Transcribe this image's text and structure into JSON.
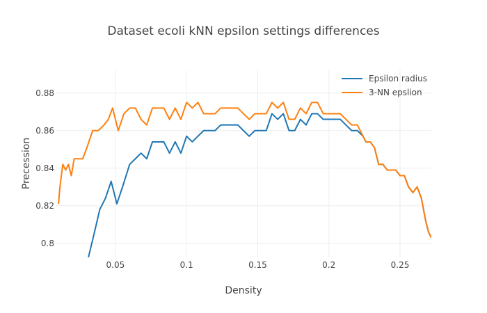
{
  "chart_data": {
    "type": "line",
    "title": "Dataset ecoli kNN epsilon settings differences",
    "xlabel": "Density",
    "ylabel": "Precession",
    "xlim": [
      0.008,
      0.272
    ],
    "ylim": [
      0.7925,
      0.8925
    ],
    "xticks": [
      0.05,
      0.1,
      0.15,
      0.2,
      0.25
    ],
    "xtick_labels": [
      "0.05",
      "0.1",
      "0.15",
      "0.2",
      "0.25"
    ],
    "yticks": [
      0.8,
      0.82,
      0.84,
      0.86,
      0.88
    ],
    "ytick_labels": [
      "0.8",
      "0.82",
      "0.84",
      "0.86",
      "0.88"
    ],
    "grid": true,
    "legend_position": "top-right",
    "series": [
      {
        "name": "Epsilon radius",
        "color": "#1f77b4",
        "points": [
          [
            0.031,
            0.7925
          ],
          [
            0.035,
            0.805
          ],
          [
            0.039,
            0.818
          ],
          [
            0.043,
            0.824
          ],
          [
            0.047,
            0.833
          ],
          [
            0.051,
            0.821
          ],
          [
            0.055,
            0.83
          ],
          [
            0.06,
            0.842
          ],
          [
            0.064,
            0.845
          ],
          [
            0.068,
            0.848
          ],
          [
            0.072,
            0.845
          ],
          [
            0.076,
            0.854
          ],
          [
            0.08,
            0.854
          ],
          [
            0.084,
            0.854
          ],
          [
            0.088,
            0.848
          ],
          [
            0.092,
            0.854
          ],
          [
            0.096,
            0.848
          ],
          [
            0.1,
            0.857
          ],
          [
            0.104,
            0.854
          ],
          [
            0.108,
            0.857
          ],
          [
            0.112,
            0.86
          ],
          [
            0.116,
            0.86
          ],
          [
            0.12,
            0.86
          ],
          [
            0.124,
            0.863
          ],
          [
            0.128,
            0.863
          ],
          [
            0.132,
            0.863
          ],
          [
            0.136,
            0.863
          ],
          [
            0.14,
            0.86
          ],
          [
            0.144,
            0.857
          ],
          [
            0.148,
            0.86
          ],
          [
            0.152,
            0.86
          ],
          [
            0.156,
            0.86
          ],
          [
            0.16,
            0.869
          ],
          [
            0.164,
            0.866
          ],
          [
            0.168,
            0.869
          ],
          [
            0.172,
            0.86
          ],
          [
            0.176,
            0.86
          ],
          [
            0.18,
            0.866
          ],
          [
            0.184,
            0.863
          ],
          [
            0.188,
            0.869
          ],
          [
            0.192,
            0.869
          ],
          [
            0.196,
            0.866
          ],
          [
            0.2,
            0.866
          ],
          [
            0.204,
            0.866
          ],
          [
            0.208,
            0.866
          ],
          [
            0.212,
            0.863
          ],
          [
            0.216,
            0.86
          ],
          [
            0.22,
            0.86
          ],
          [
            0.224,
            0.857
          ],
          [
            0.226,
            0.854
          ],
          [
            0.229,
            0.854
          ],
          [
            0.232,
            0.851
          ],
          [
            0.235,
            0.842
          ],
          [
            0.238,
            0.842
          ],
          [
            0.241,
            0.839
          ],
          [
            0.244,
            0.839
          ],
          [
            0.247,
            0.839
          ],
          [
            0.25,
            0.836
          ],
          [
            0.253,
            0.836
          ],
          [
            0.256,
            0.83
          ],
          [
            0.259,
            0.827
          ],
          [
            0.262,
            0.83
          ],
          [
            0.265,
            0.824
          ],
          [
            0.268,
            0.812
          ],
          [
            0.27,
            0.806
          ],
          [
            0.272,
            0.803
          ]
        ]
      },
      {
        "name": "3-NN epslion",
        "color": "#ff7f0e",
        "points": [
          [
            0.01,
            0.821
          ],
          [
            0.011,
            0.83
          ],
          [
            0.013,
            0.842
          ],
          [
            0.015,
            0.839
          ],
          [
            0.017,
            0.842
          ],
          [
            0.019,
            0.836
          ],
          [
            0.021,
            0.845
          ],
          [
            0.023,
            0.845
          ],
          [
            0.025,
            0.845
          ],
          [
            0.027,
            0.845
          ],
          [
            0.03,
            0.851
          ],
          [
            0.034,
            0.86
          ],
          [
            0.038,
            0.86
          ],
          [
            0.042,
            0.863
          ],
          [
            0.045,
            0.866
          ],
          [
            0.048,
            0.872
          ],
          [
            0.052,
            0.86
          ],
          [
            0.056,
            0.869
          ],
          [
            0.06,
            0.872
          ],
          [
            0.064,
            0.872
          ],
          [
            0.068,
            0.866
          ],
          [
            0.072,
            0.863
          ],
          [
            0.076,
            0.872
          ],
          [
            0.08,
            0.872
          ],
          [
            0.084,
            0.872
          ],
          [
            0.088,
            0.866
          ],
          [
            0.092,
            0.872
          ],
          [
            0.096,
            0.866
          ],
          [
            0.1,
            0.875
          ],
          [
            0.104,
            0.872
          ],
          [
            0.108,
            0.875
          ],
          [
            0.112,
            0.869
          ],
          [
            0.116,
            0.869
          ],
          [
            0.12,
            0.869
          ],
          [
            0.124,
            0.872
          ],
          [
            0.128,
            0.872
          ],
          [
            0.132,
            0.872
          ],
          [
            0.136,
            0.872
          ],
          [
            0.14,
            0.869
          ],
          [
            0.144,
            0.866
          ],
          [
            0.148,
            0.869
          ],
          [
            0.152,
            0.869
          ],
          [
            0.156,
            0.869
          ],
          [
            0.16,
            0.875
          ],
          [
            0.164,
            0.872
          ],
          [
            0.168,
            0.875
          ],
          [
            0.172,
            0.866
          ],
          [
            0.176,
            0.866
          ],
          [
            0.18,
            0.872
          ],
          [
            0.184,
            0.869
          ],
          [
            0.188,
            0.875
          ],
          [
            0.192,
            0.875
          ],
          [
            0.196,
            0.869
          ],
          [
            0.2,
            0.869
          ],
          [
            0.204,
            0.869
          ],
          [
            0.208,
            0.869
          ],
          [
            0.212,
            0.866
          ],
          [
            0.216,
            0.863
          ],
          [
            0.22,
            0.863
          ],
          [
            0.224,
            0.857
          ],
          [
            0.226,
            0.854
          ],
          [
            0.229,
            0.854
          ],
          [
            0.232,
            0.851
          ],
          [
            0.235,
            0.842
          ],
          [
            0.238,
            0.842
          ],
          [
            0.241,
            0.839
          ],
          [
            0.244,
            0.839
          ],
          [
            0.247,
            0.839
          ],
          [
            0.25,
            0.836
          ],
          [
            0.253,
            0.836
          ],
          [
            0.256,
            0.83
          ],
          [
            0.259,
            0.827
          ],
          [
            0.262,
            0.83
          ],
          [
            0.265,
            0.824
          ],
          [
            0.268,
            0.812
          ],
          [
            0.27,
            0.806
          ],
          [
            0.272,
            0.803
          ]
        ]
      }
    ]
  }
}
